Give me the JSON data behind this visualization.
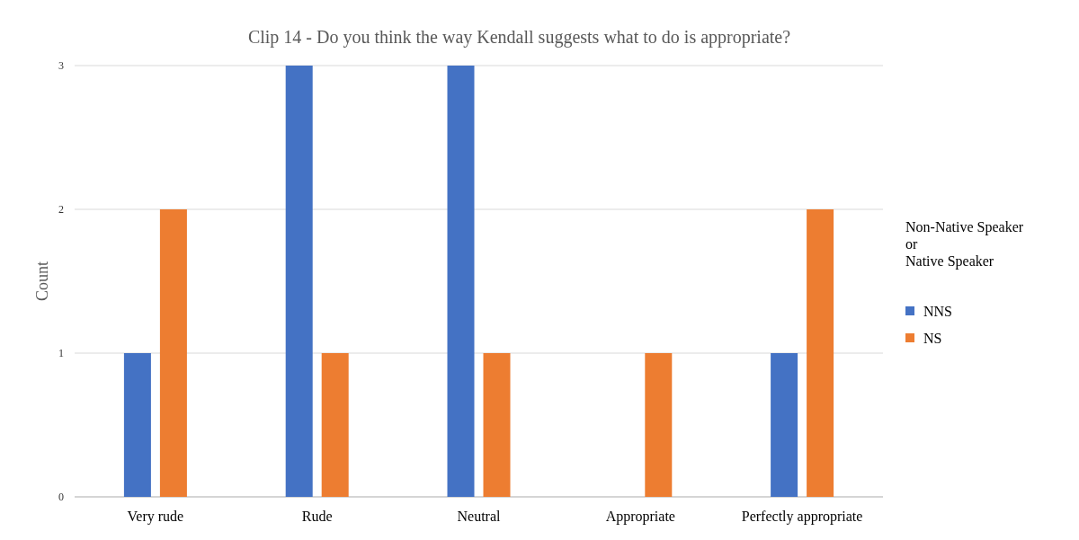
{
  "chart_data": {
    "type": "bar",
    "title": "Clip 14 - Do you think the way Kendall suggests what to do is appropriate?",
    "ylabel": "Count",
    "legend_title": "Non-Native Speaker\nor\nNative Speaker",
    "categories": [
      "Very rude",
      "Rude",
      "Neutral",
      "Appropriate",
      "Perfectly appropriate"
    ],
    "series": [
      {
        "name": "NNS",
        "color": "#4472c4",
        "values": [
          1,
          3,
          3,
          0,
          1
        ]
      },
      {
        "name": "NS",
        "color": "#ed7d31",
        "values": [
          2,
          1,
          1,
          1,
          2
        ]
      }
    ],
    "ylim": [
      0,
      3
    ],
    "yticks": [
      0,
      1,
      2,
      3
    ],
    "grid": "y",
    "legend": "right"
  }
}
